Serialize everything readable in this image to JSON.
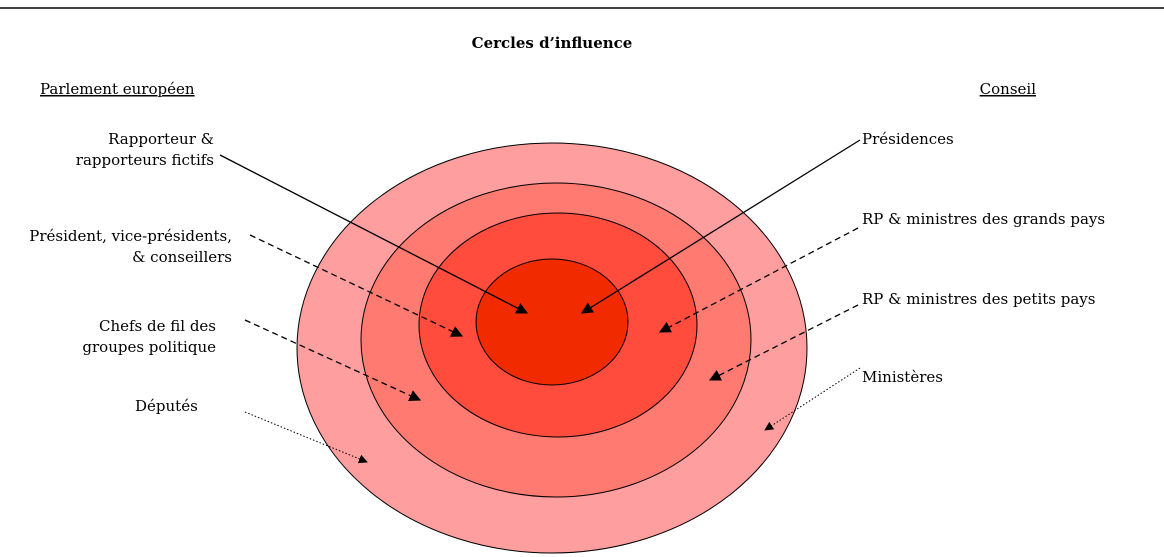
{
  "title": "Cercles d’influence",
  "left_heading": "Parlement européen",
  "right_heading": "Conseil",
  "left_labels": [
    {
      "lines": [
        "Rapporteur &",
        "rapporteurs fictifs"
      ]
    },
    {
      "lines": [
        "Président, vice-présidents,",
        "& conseillers"
      ]
    },
    {
      "lines": [
        "Chefs de fil des",
        "groupes politique"
      ]
    },
    {
      "lines": [
        "Députés"
      ]
    }
  ],
  "right_labels": [
    {
      "lines": [
        "Présidences"
      ]
    },
    {
      "lines": [
        "RP & ministres des grands pays"
      ]
    },
    {
      "lines": [
        "RP & ministres des petits pays"
      ]
    },
    {
      "lines": [
        "Ministères"
      ]
    }
  ]
}
